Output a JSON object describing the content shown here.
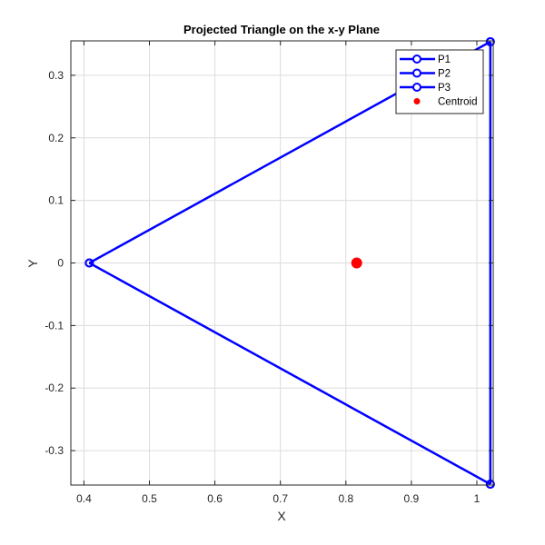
{
  "chart_data": {
    "type": "line",
    "title": "Projected Triangle on the x-y Plane",
    "xlabel": "X",
    "ylabel": "Y",
    "xlim": [
      0.38,
      1.025
    ],
    "ylim": [
      -0.355,
      0.355
    ],
    "xticks": [
      0.4,
      0.5,
      0.6,
      0.7,
      0.8,
      0.9,
      1
    ],
    "xtick_labels": [
      "0.4",
      "0.5",
      "0.6",
      "0.7",
      "0.8",
      "0.9",
      "1"
    ],
    "yticks": [
      -0.3,
      -0.2,
      -0.1,
      0,
      0.1,
      0.2,
      0.3
    ],
    "ytick_labels": [
      "-0.3",
      "-0.2",
      "-0.1",
      "0",
      "0.1",
      "0.2",
      "0.3"
    ],
    "grid": true,
    "legend_position": "top-right",
    "series": [
      {
        "name": "P1",
        "x": [
          1.0206,
          0.4082
        ],
        "y": [
          0.3536,
          0.0
        ],
        "color": "#0000ff"
      },
      {
        "name": "P2",
        "x": [
          0.4082,
          1.0206
        ],
        "y": [
          0.0,
          -0.3536
        ],
        "color": "#0000ff"
      },
      {
        "name": "P3",
        "x": [
          1.0206,
          1.0206
        ],
        "y": [
          -0.3536,
          0.3536
        ],
        "color": "#0000ff"
      },
      {
        "name": "Centroid",
        "x": [
          0.8165
        ],
        "y": [
          0.0
        ],
        "color": "#ff0000",
        "marker": "filled-dot"
      }
    ]
  }
}
